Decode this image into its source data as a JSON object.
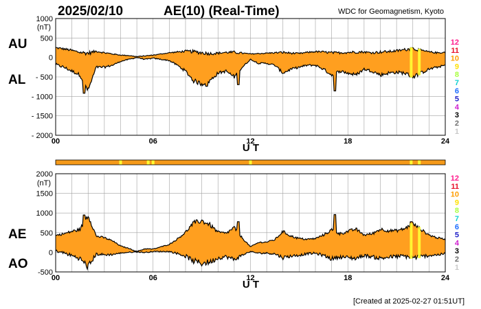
{
  "header": {
    "date": "2025/02/10",
    "title": "AE(10) (Real-Time)",
    "source": "WDC for Geomagnetism, Kyoto"
  },
  "footer": {
    "created": "[Created at 2025-02-27 01:51UT]"
  },
  "colors": {
    "fill": "#ff9f1f",
    "outline": "#000000",
    "grid": "#a0a0a0",
    "station_bar": "#f59a1a",
    "station_highlight": "#ffff33"
  },
  "station_legend": [
    {
      "label": "12",
      "color": "#ff1a8c"
    },
    {
      "label": "11",
      "color": "#e8102a"
    },
    {
      "label": "10",
      "color": "#ff9d00"
    },
    {
      "label": "9",
      "color": "#ffe000"
    },
    {
      "label": "8",
      "color": "#a8ff40"
    },
    {
      "label": "7",
      "color": "#10d0d0"
    },
    {
      "label": "6",
      "color": "#1a6bff"
    },
    {
      "label": "5",
      "color": "#2222c8"
    },
    {
      "label": "4",
      "color": "#d020d0"
    },
    {
      "label": "3",
      "color": "#000000"
    },
    {
      "label": "2",
      "color": "#707070"
    },
    {
      "label": "1",
      "color": "#c8c8c8"
    }
  ],
  "chart_data": [
    {
      "type": "area",
      "title": "AU / AL",
      "xlabel": "U T",
      "ylabel": "(nT)",
      "series_labels": [
        "AU",
        "AL"
      ],
      "xlim": [
        0,
        24
      ],
      "ylim": [
        -2000,
        1000
      ],
      "xticks": [
        "00",
        "06",
        "12",
        "18",
        "24"
      ],
      "yticks": [
        "1000",
        "500",
        "0",
        "- 500",
        "- 1000",
        "- 1500",
        "- 2000"
      ],
      "grid": true,
      "series": [
        {
          "name": "AU",
          "x": [
            0,
            0.5,
            1,
            1.5,
            2,
            2.5,
            3,
            3.5,
            4,
            4.5,
            5,
            5.5,
            6,
            6.5,
            7,
            7.5,
            8,
            8.5,
            9,
            9.5,
            10,
            10.5,
            11,
            11.5,
            12,
            12.5,
            13,
            13.5,
            14,
            14.5,
            15,
            15.5,
            16,
            16.5,
            17,
            17.5,
            18,
            18.5,
            19,
            19.5,
            20,
            20.5,
            21,
            21.5,
            22,
            22.5,
            23,
            23.5,
            24
          ],
          "values": [
            250,
            220,
            180,
            130,
            110,
            160,
            120,
            90,
            60,
            50,
            20,
            40,
            60,
            90,
            120,
            140,
            160,
            150,
            120,
            100,
            110,
            130,
            130,
            110,
            90,
            100,
            110,
            120,
            130,
            110,
            100,
            130,
            150,
            140,
            120,
            120,
            130,
            140,
            140,
            120,
            140,
            150,
            170,
            200,
            230,
            180,
            140,
            120,
            130
          ]
        },
        {
          "name": "AL",
          "x": [
            0,
            0.5,
            1,
            1.5,
            2,
            2.5,
            3,
            3.5,
            4,
            4.5,
            5,
            5.5,
            6,
            6.5,
            7,
            7.5,
            8,
            8.5,
            9,
            9.5,
            10,
            10.5,
            11,
            11.5,
            12,
            12.5,
            13,
            13.5,
            14,
            14.5,
            15,
            15.5,
            16,
            16.5,
            17,
            17.5,
            18,
            18.5,
            19,
            19.5,
            20,
            20.5,
            21,
            21.5,
            22,
            22.5,
            23,
            23.5,
            24
          ],
          "values": [
            -180,
            -250,
            -350,
            -450,
            -850,
            -250,
            -250,
            -200,
            -100,
            -50,
            0,
            -50,
            -20,
            -50,
            -80,
            -200,
            -350,
            -600,
            -680,
            -600,
            -400,
            -350,
            -500,
            -250,
            -50,
            -150,
            -150,
            -200,
            -400,
            -300,
            -250,
            -200,
            -200,
            -300,
            -450,
            -350,
            -400,
            -450,
            -300,
            -350,
            -450,
            -400,
            -380,
            -400,
            -500,
            -400,
            -300,
            -250,
            -200
          ]
        }
      ]
    },
    {
      "type": "area",
      "title": "AE / AO",
      "xlabel": "U T",
      "ylabel": "(nT)",
      "series_labels": [
        "AE",
        "AO"
      ],
      "xlim": [
        0,
        24
      ],
      "ylim": [
        -500,
        2000
      ],
      "xticks": [
        "00",
        "06",
        "12",
        "18",
        "24"
      ],
      "yticks": [
        "2000",
        "1500",
        "1000",
        "500",
        "0",
        "-500"
      ],
      "grid": true,
      "series": [
        {
          "name": "AE",
          "x": [
            0,
            0.5,
            1,
            1.5,
            2,
            2.5,
            3,
            3.5,
            4,
            4.5,
            5,
            5.5,
            6,
            6.5,
            7,
            7.5,
            8,
            8.5,
            9,
            9.5,
            10,
            10.5,
            11,
            11.5,
            12,
            12.5,
            13,
            13.5,
            14,
            14.5,
            15,
            15.5,
            16,
            16.5,
            17,
            17.5,
            18,
            18.5,
            19,
            19.5,
            20,
            20.5,
            21,
            21.5,
            22,
            22.5,
            23,
            23.5,
            24
          ],
          "values": [
            430,
            470,
            530,
            580,
            950,
            410,
            370,
            290,
            160,
            100,
            20,
            90,
            80,
            140,
            200,
            340,
            510,
            750,
            800,
            700,
            510,
            480,
            630,
            360,
            140,
            250,
            260,
            320,
            530,
            410,
            350,
            330,
            350,
            440,
            570,
            470,
            530,
            590,
            440,
            470,
            590,
            550,
            550,
            600,
            730,
            580,
            440,
            370,
            330
          ]
        },
        {
          "name": "AO",
          "x": [
            0,
            0.5,
            1,
            1.5,
            2,
            2.5,
            3,
            3.5,
            4,
            4.5,
            5,
            5.5,
            6,
            6.5,
            7,
            7.5,
            8,
            8.5,
            9,
            9.5,
            10,
            10.5,
            11,
            11.5,
            12,
            12.5,
            13,
            13.5,
            14,
            14.5,
            15,
            15.5,
            16,
            16.5,
            17,
            17.5,
            18,
            18.5,
            19,
            19.5,
            20,
            20.5,
            21,
            21.5,
            22,
            22.5,
            23,
            23.5,
            24
          ],
          "values": [
            35,
            -15,
            -85,
            -160,
            -370,
            -45,
            -65,
            -55,
            -20,
            0,
            10,
            -5,
            20,
            20,
            20,
            -30,
            -95,
            -225,
            -280,
            -250,
            -145,
            -110,
            -185,
            -70,
            20,
            -25,
            -20,
            -40,
            -135,
            -95,
            -75,
            -35,
            -25,
            -80,
            -165,
            -115,
            -135,
            -155,
            -80,
            -115,
            -155,
            -125,
            -105,
            -100,
            -135,
            -110,
            -80,
            -65,
            -35
          ]
        }
      ]
    }
  ],
  "station_bar": {
    "highlights": [
      4.0,
      5.7,
      6.0,
      12.0,
      21.9,
      22.4
    ]
  }
}
